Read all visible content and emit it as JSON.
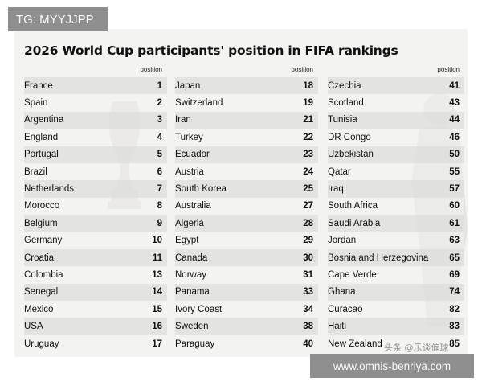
{
  "tg_badge": "TG: MYYJJPP",
  "title": "2026 World Cup participants' position in FIFA rankings",
  "column_header": "position",
  "columns": [
    {
      "rows": [
        {
          "name": "France",
          "pos": "1"
        },
        {
          "name": "Spain",
          "pos": "2"
        },
        {
          "name": "Argentina",
          "pos": "3"
        },
        {
          "name": "England",
          "pos": "4"
        },
        {
          "name": "Portugal",
          "pos": "5"
        },
        {
          "name": "Brazil",
          "pos": "6"
        },
        {
          "name": "Netherlands",
          "pos": "7"
        },
        {
          "name": "Morocco",
          "pos": "8"
        },
        {
          "name": "Belgium",
          "pos": "9"
        },
        {
          "name": "Germany",
          "pos": "10"
        },
        {
          "name": "Croatia",
          "pos": "11"
        },
        {
          "name": "Colombia",
          "pos": "13"
        },
        {
          "name": "Senegal",
          "pos": "14"
        },
        {
          "name": "Mexico",
          "pos": "15"
        },
        {
          "name": "USA",
          "pos": "16"
        },
        {
          "name": "Uruguay",
          "pos": "17"
        }
      ]
    },
    {
      "rows": [
        {
          "name": "Japan",
          "pos": "18"
        },
        {
          "name": "Switzerland",
          "pos": "19"
        },
        {
          "name": "Iran",
          "pos": "21"
        },
        {
          "name": "Turkey",
          "pos": "22"
        },
        {
          "name": "Ecuador",
          "pos": "23"
        },
        {
          "name": "Austria",
          "pos": "24"
        },
        {
          "name": "South Korea",
          "pos": "25"
        },
        {
          "name": "Australia",
          "pos": "27"
        },
        {
          "name": "Algeria",
          "pos": "28"
        },
        {
          "name": "Egypt",
          "pos": "29"
        },
        {
          "name": "Canada",
          "pos": "30"
        },
        {
          "name": "Norway",
          "pos": "31"
        },
        {
          "name": "Panama",
          "pos": "33"
        },
        {
          "name": "Ivory Coast",
          "pos": "34"
        },
        {
          "name": "Sweden",
          "pos": "38"
        },
        {
          "name": "Paraguay",
          "pos": "40"
        }
      ]
    },
    {
      "rows": [
        {
          "name": "Czechia",
          "pos": "41"
        },
        {
          "name": "Scotland",
          "pos": "43"
        },
        {
          "name": "Tunisia",
          "pos": "44"
        },
        {
          "name": "DR Congo",
          "pos": "46"
        },
        {
          "name": "Uzbekistan",
          "pos": "50"
        },
        {
          "name": "Qatar",
          "pos": "55"
        },
        {
          "name": "Iraq",
          "pos": "57"
        },
        {
          "name": "South Africa",
          "pos": "60"
        },
        {
          "name": "Saudi Arabia",
          "pos": "61"
        },
        {
          "name": "Jordan",
          "pos": "63"
        },
        {
          "name": "Bosnia and Herzegovina",
          "pos": "65"
        },
        {
          "name": "Cape Verde",
          "pos": "69"
        },
        {
          "name": "Ghana",
          "pos": "74"
        },
        {
          "name": "Curacao",
          "pos": "82"
        },
        {
          "name": "Haiti",
          "pos": "83"
        },
        {
          "name": "New Zealand",
          "pos": "85"
        }
      ]
    }
  ],
  "url_badge": "www.omnis-benriya.com",
  "cn_watermark": "头条 @乐谈偏球",
  "icons": {
    "trophy": "world-cup-trophy-watermark",
    "player": "player-silhouette-watermark"
  }
}
